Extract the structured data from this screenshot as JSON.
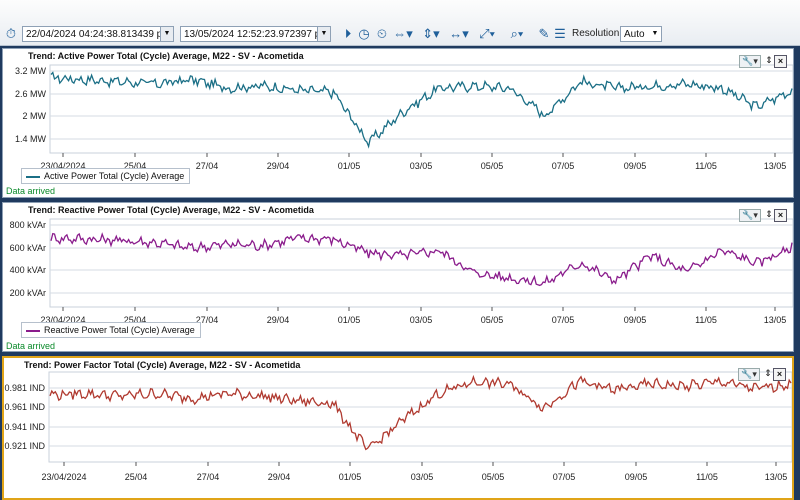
{
  "toolbar": {
    "start_time": "22/04/2024 04:24:38.813439 p. m.",
    "end_time": "13/05/2024 12:52:23.972397 p. m.",
    "resolution_label": "Resolution:",
    "resolution_value": "Auto"
  },
  "x_ticks": [
    "23/04/2024",
    "25/04",
    "27/04",
    "29/04",
    "01/05",
    "03/05",
    "05/05",
    "07/05",
    "09/05",
    "11/05",
    "13/05"
  ],
  "status": {
    "active": "Data arrived",
    "reactive": "Data arrived"
  },
  "trends": [
    {
      "title": "Trend: Active Power Total (Cycle) Average, M22 - SV - Acometida",
      "legend": "Active Power Total (Cycle) Average",
      "color": "#1b6f86",
      "y_ticks": [
        "3.2 MW",
        "2.6 MW",
        "2 MW",
        "1.4 MW"
      ]
    },
    {
      "title": "Trend: Reactive Power Total (Cycle) Average, M22 - SV - Acometida",
      "legend": "Reactive Power Total (Cycle) Average",
      "color": "#8a1c8c",
      "y_ticks": [
        "800 kVAr",
        "600 kVAr",
        "400 kVAr",
        "200 kVAr"
      ]
    },
    {
      "title": "Trend: Power Factor Total (Cycle) Average, M22 - SV - Acometida",
      "legend": "",
      "color": "#b03a30",
      "y_ticks": [
        "0.981 IND",
        "0.961 IND",
        "0.941 IND",
        "0.921 IND"
      ]
    }
  ],
  "chart_data": [
    {
      "type": "line",
      "title": "Trend: Active Power Total (Cycle) Average, M22 - SV - Acometida",
      "x": [
        "22/04",
        "23/04",
        "24/04",
        "25/04",
        "26/04",
        "27/04",
        "28/04",
        "29/04",
        "30/04",
        "01/05",
        "02/05",
        "03/05",
        "04/05",
        "05/05",
        "06/05",
        "07/05",
        "08/05",
        "09/05",
        "10/05",
        "11/05",
        "12/05",
        "13/05"
      ],
      "series": [
        {
          "name": "Active Power Total (Cycle) Average",
          "values": [
            3.0,
            2.95,
            2.9,
            2.85,
            2.95,
            2.75,
            2.8,
            2.7,
            2.65,
            1.45,
            2.2,
            2.75,
            2.8,
            2.75,
            2.1,
            2.9,
            2.75,
            2.8,
            2.85,
            2.75,
            2.3,
            2.7
          ]
        }
      ],
      "y_unit": "MW",
      "ylim": [
        1.2,
        3.3
      ]
    },
    {
      "type": "line",
      "title": "Trend: Reactive Power Total (Cycle) Average, M22 - SV - Acometida",
      "x": [
        "22/04",
        "23/04",
        "24/04",
        "25/04",
        "26/04",
        "27/04",
        "28/04",
        "29/04",
        "30/04",
        "01/05",
        "02/05",
        "03/05",
        "04/05",
        "05/05",
        "06/05",
        "07/05",
        "08/05",
        "09/05",
        "10/05",
        "11/05",
        "12/05",
        "13/05"
      ],
      "series": [
        {
          "name": "Reactive Power Total (Cycle) Average",
          "values": [
            700,
            690,
            680,
            660,
            620,
            650,
            640,
            700,
            690,
            580,
            560,
            600,
            420,
            380,
            340,
            500,
            360,
            560,
            430,
            600,
            500,
            620
          ]
        }
      ],
      "y_unit": "kVAr",
      "ylim": [
        150,
        850
      ]
    },
    {
      "type": "line",
      "title": "Trend: Power Factor Total (Cycle) Average, M22 - SV - Acometida",
      "x": [
        "22/04",
        "23/04",
        "24/04",
        "25/04",
        "26/04",
        "27/04",
        "28/04",
        "29/04",
        "30/04",
        "01/05",
        "02/05",
        "03/05",
        "04/05",
        "05/05",
        "06/05",
        "07/05",
        "08/05",
        "09/05",
        "10/05",
        "11/05",
        "12/05",
        "13/05"
      ],
      "series": [
        {
          "name": "Power Factor Total (Cycle) Average",
          "values": [
            0.971,
            0.972,
            0.97,
            0.972,
            0.968,
            0.972,
            0.97,
            0.966,
            0.964,
            0.925,
            0.95,
            0.972,
            0.982,
            0.98,
            0.96,
            0.982,
            0.975,
            0.98,
            0.978,
            0.982,
            0.976,
            0.98
          ]
        }
      ],
      "y_unit": "IND",
      "ylim": [
        0.915,
        0.99
      ]
    }
  ]
}
